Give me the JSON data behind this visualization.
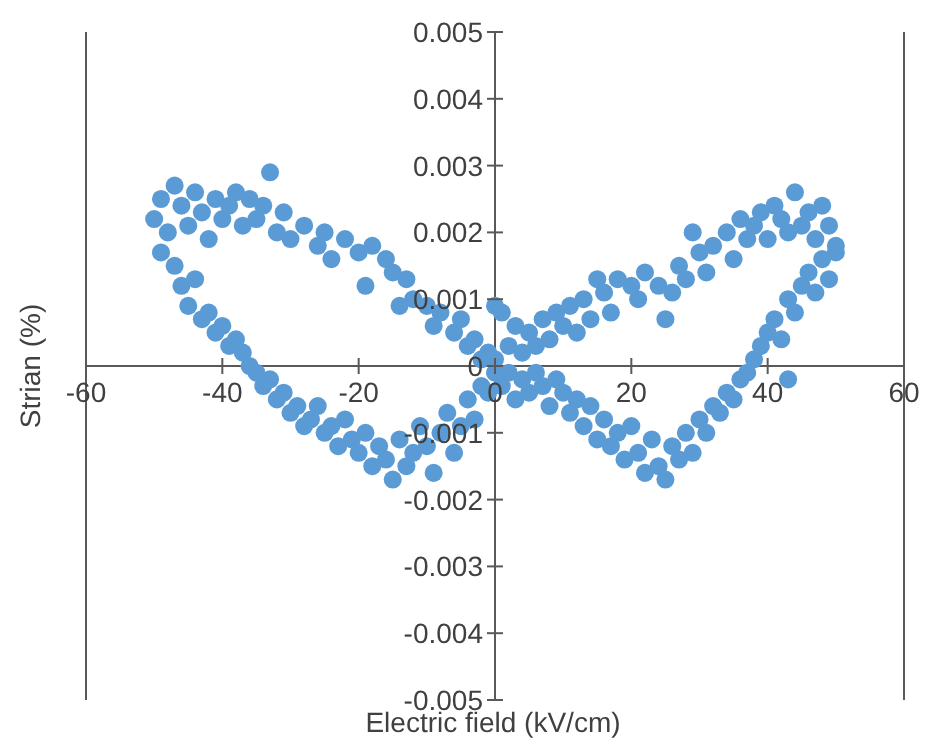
{
  "chart_data": {
    "type": "scatter",
    "xlabel": "Electric field (kV/cm)",
    "ylabel": "Strian (%)",
    "xlim": [
      -60,
      60
    ],
    "xticks": [
      -60,
      -40,
      -20,
      0,
      20,
      40,
      60
    ],
    "ylim": [
      -0.005,
      0.005
    ],
    "yticks": [
      -0.005,
      -0.004,
      -0.003,
      -0.002,
      -0.001,
      0,
      0.001,
      0.002,
      0.003,
      0.004,
      0.005
    ],
    "grid": false,
    "legend": false,
    "marker": "circle",
    "series": [
      {
        "color": "#5b9bd5",
        "x": [
          -50,
          -49,
          -48,
          -47,
          -46,
          -45,
          -44,
          -43,
          -42,
          -41,
          -40,
          -39,
          -38,
          -37,
          -36,
          -35,
          -34,
          -33,
          -32,
          -31,
          -30,
          -28,
          -26,
          -25,
          -24,
          -22,
          -20,
          -19,
          -18,
          -16,
          -15,
          -14,
          -13,
          -12,
          -10,
          -9,
          -8,
          -6,
          -5,
          -4,
          -3,
          -2,
          -1,
          -49,
          -47,
          -46,
          -45,
          -44,
          -43,
          -42,
          -41,
          -40,
          -39,
          -38,
          -37,
          -36,
          -35,
          -34,
          -33,
          -32,
          -31,
          -30,
          -29,
          -28,
          -27,
          -26,
          -25,
          -24,
          -23,
          -22,
          -21,
          -20,
          -19,
          -18,
          -17,
          -16,
          -15,
          -14,
          -13,
          -12,
          -11,
          -10,
          -9,
          -8,
          -7,
          -6,
          -5,
          -4,
          -3,
          -2,
          -1,
          0,
          0,
          0,
          1,
          2,
          3,
          4,
          5,
          6,
          7,
          8,
          9,
          10,
          11,
          12,
          13,
          14,
          15,
          16,
          17,
          18,
          20,
          21,
          22,
          24,
          25,
          26,
          27,
          28,
          29,
          30,
          31,
          32,
          34,
          35,
          36,
          37,
          38,
          39,
          40,
          41,
          42,
          43,
          44,
          45,
          46,
          47,
          48,
          49,
          50,
          1,
          2,
          3,
          4,
          5,
          6,
          7,
          8,
          9,
          10,
          11,
          12,
          13,
          14,
          15,
          16,
          17,
          18,
          19,
          20,
          21,
          22,
          23,
          24,
          25,
          26,
          27,
          28,
          29,
          30,
          31,
          32,
          33,
          34,
          35,
          36,
          37,
          38,
          39,
          40,
          41,
          42,
          43,
          44,
          45,
          46,
          47,
          48,
          49,
          50,
          43
        ],
        "values": [
          0.0022,
          0.0025,
          0.002,
          0.0027,
          0.0024,
          0.0021,
          0.0026,
          0.0023,
          0.0019,
          0.0025,
          0.0022,
          0.0024,
          0.0026,
          0.0021,
          0.0025,
          0.0022,
          0.0024,
          0.0029,
          0.002,
          0.0023,
          0.0019,
          0.0021,
          0.0018,
          0.002,
          0.0016,
          0.0019,
          0.0017,
          0.0012,
          0.0018,
          0.0016,
          0.0014,
          0.0009,
          0.0013,
          0.001,
          0.0009,
          0.0006,
          0.0008,
          0.0005,
          0.0007,
          0.0003,
          0.0004,
          0.0001,
          0.0002,
          0.0017,
          0.0015,
          0.0012,
          0.0009,
          0.0013,
          0.0007,
          0.0008,
          0.0005,
          0.0006,
          0.0003,
          0.0004,
          0.0002,
          0,
          -0.0001,
          -0.0003,
          -0.0002,
          -0.0005,
          -0.0004,
          -0.0007,
          -0.0006,
          -0.0009,
          -0.0008,
          -0.0006,
          -0.001,
          -0.0009,
          -0.0012,
          -0.0008,
          -0.0011,
          -0.0013,
          -0.001,
          -0.0015,
          -0.0012,
          -0.0014,
          -0.0017,
          -0.0011,
          -0.0015,
          -0.0013,
          -0.0009,
          -0.0012,
          -0.0016,
          -0.001,
          -0.0007,
          -0.0013,
          -0.0009,
          -0.0005,
          -0.0008,
          -0.0003,
          -0.0004,
          0.0001,
          -0.0001,
          0.0009,
          0.0008,
          0.0003,
          0.0006,
          0.0002,
          0.0005,
          0.0003,
          0.0007,
          0.0004,
          0.0008,
          0.0006,
          0.0009,
          0.0005,
          0.001,
          0.0007,
          0.0013,
          0.0011,
          0.0008,
          0.0013,
          0.0012,
          0.001,
          0.0014,
          0.0012,
          0.0007,
          0.0011,
          0.0015,
          0.0013,
          0.002,
          0.0017,
          0.0014,
          0.0018,
          0.002,
          0.0016,
          0.0022,
          0.0019,
          0.0021,
          0.0023,
          0.0019,
          0.0024,
          0.0022,
          0.002,
          0.0026,
          0.0021,
          0.0023,
          0.0019,
          0.0024,
          0.0021,
          0.0018,
          -0.0003,
          -0.0001,
          -0.0005,
          -0.0002,
          -0.0004,
          -0.0001,
          -0.0003,
          -0.0006,
          -0.0002,
          -0.0004,
          -0.0007,
          -0.0005,
          -0.0009,
          -0.0006,
          -0.0011,
          -0.0008,
          -0.0012,
          -0.001,
          -0.0014,
          -0.0009,
          -0.0013,
          -0.0016,
          -0.0011,
          -0.0015,
          -0.0017,
          -0.0012,
          -0.0014,
          -0.001,
          -0.0013,
          -0.0008,
          -0.001,
          -0.0006,
          -0.0007,
          -0.0004,
          -0.0005,
          -0.0002,
          -0.0001,
          0.0001,
          0.0003,
          0.0005,
          0.0007,
          0.0004,
          0.001,
          0.0008,
          0.0012,
          0.0014,
          0.0011,
          0.0016,
          0.0013,
          0.0017,
          -0.0002
        ]
      }
    ]
  }
}
